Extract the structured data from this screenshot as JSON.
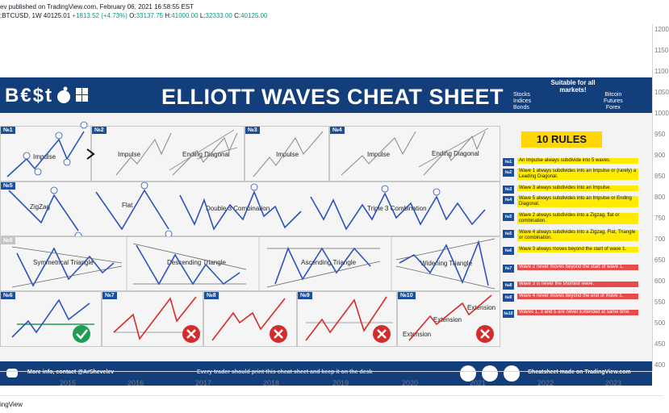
{
  "header": {
    "published": "ev published on TradingView.com, February 06, 2021 16:58:55 EST",
    "symbol": ":BTCUSD, 1W",
    "last": "40125.01",
    "change": "+1813.52 (+4.73%)",
    "o_label": "O:",
    "o": "33137.75",
    "h_label": "H:",
    "h": "41000.00",
    "l_label": "L:",
    "l": "32333.00",
    "c_label": "C:",
    "c": "40125.00"
  },
  "price_axis": [
    "1200",
    "1150",
    "1100",
    "1050",
    "1000",
    "950",
    "900",
    "850",
    "800",
    "750",
    "700",
    "650",
    "600",
    "550",
    "500",
    "450",
    "400"
  ],
  "time_axis": [
    "2015",
    "2016",
    "2017",
    "2018",
    "2019",
    "2020",
    "2021",
    "2022",
    "2023"
  ],
  "footer": {
    "brand": "ingView"
  },
  "sheet": {
    "assets": "B€$t",
    "title": "ELLIOTT WAVES CHEAT SHEET",
    "suitable": "Suitable for all markets!",
    "markets_left": [
      "Stocks",
      "Indices",
      "Bonds"
    ],
    "markets_right": [
      "Bitcoin",
      "Futures",
      "Forex"
    ],
    "panels": {
      "n1": "№1",
      "n2": "№2",
      "n3": "№3",
      "n4": "№4",
      "n5": "№5",
      "n5b": "№5",
      "n6": "№6",
      "n7": "№7",
      "n8": "№8",
      "n9": "№9",
      "n10": "№10",
      "impulse": "Impulse",
      "ending_diagonal": "Ending Diagonal",
      "zigzag": "ZigZag",
      "flat": "Flat",
      "double3": "Double 3 Combination",
      "triple3": "Triple 3 Combination",
      "sym_tri": "Symmetrical Triangle",
      "desc_tri": "Descending Triangle",
      "asc_tri": "Ascending Triangle",
      "wid_tri": "Widening Triangle",
      "extension": "Extension"
    },
    "rules_title": "10 RULES",
    "rules": [
      {
        "num": "№1",
        "text": "An Impulse always subdivide into 5 waves.",
        "color": "yellow"
      },
      {
        "num": "№2",
        "text": "Wave 1 always subdivides into an Impulse or (rarely) a Leading Diagonal.",
        "color": "yellow"
      },
      {
        "num": "№3",
        "text": "Wave 3 always subdivides into an Impulse.",
        "color": "yellow"
      },
      {
        "num": "№4",
        "text": "Wave 5 always subdivides into an Impulse or Ending Diagonal.",
        "color": "yellow"
      },
      {
        "num": "№5",
        "text": "Wave 2 always subdivides into a Zigzag, flat or combination.",
        "color": "yellow"
      },
      {
        "num": "№5",
        "text": "Wave 4 always subdivides into a Zigzag, Flat, Triangle or combination.",
        "color": "yellow"
      },
      {
        "num": "№6",
        "text": "Wave 3 always moves beyond the start of wave 1.",
        "color": "yellow"
      },
      {
        "num": "№7",
        "text": "Wave 2 never moves beyond the start of wave 1.",
        "color": "red"
      },
      {
        "num": "№8",
        "text": "Wave 3 is never the shortest wave.",
        "color": "red"
      },
      {
        "num": "№9",
        "text": "Wave 4 never moves beyond the end of Wave 1.",
        "color": "red"
      },
      {
        "num": "№10",
        "text": "Waves 1, 3 and 5 are never Extended at same time",
        "color": "red"
      }
    ],
    "bottom": {
      "info": "More info, contact @ArShevelev",
      "print": "Every trader should print this cheat sheet and keep it on the desk",
      "made": "Cheatsheet made on TradingView.com"
    }
  },
  "colors": {
    "banner": "#133e7c",
    "wave": "#2a53c0",
    "bad": "#d42b2b",
    "good": "#1f9d55",
    "rule_yellow": "#ffeb00",
    "rule_red": "#e74c4c"
  }
}
